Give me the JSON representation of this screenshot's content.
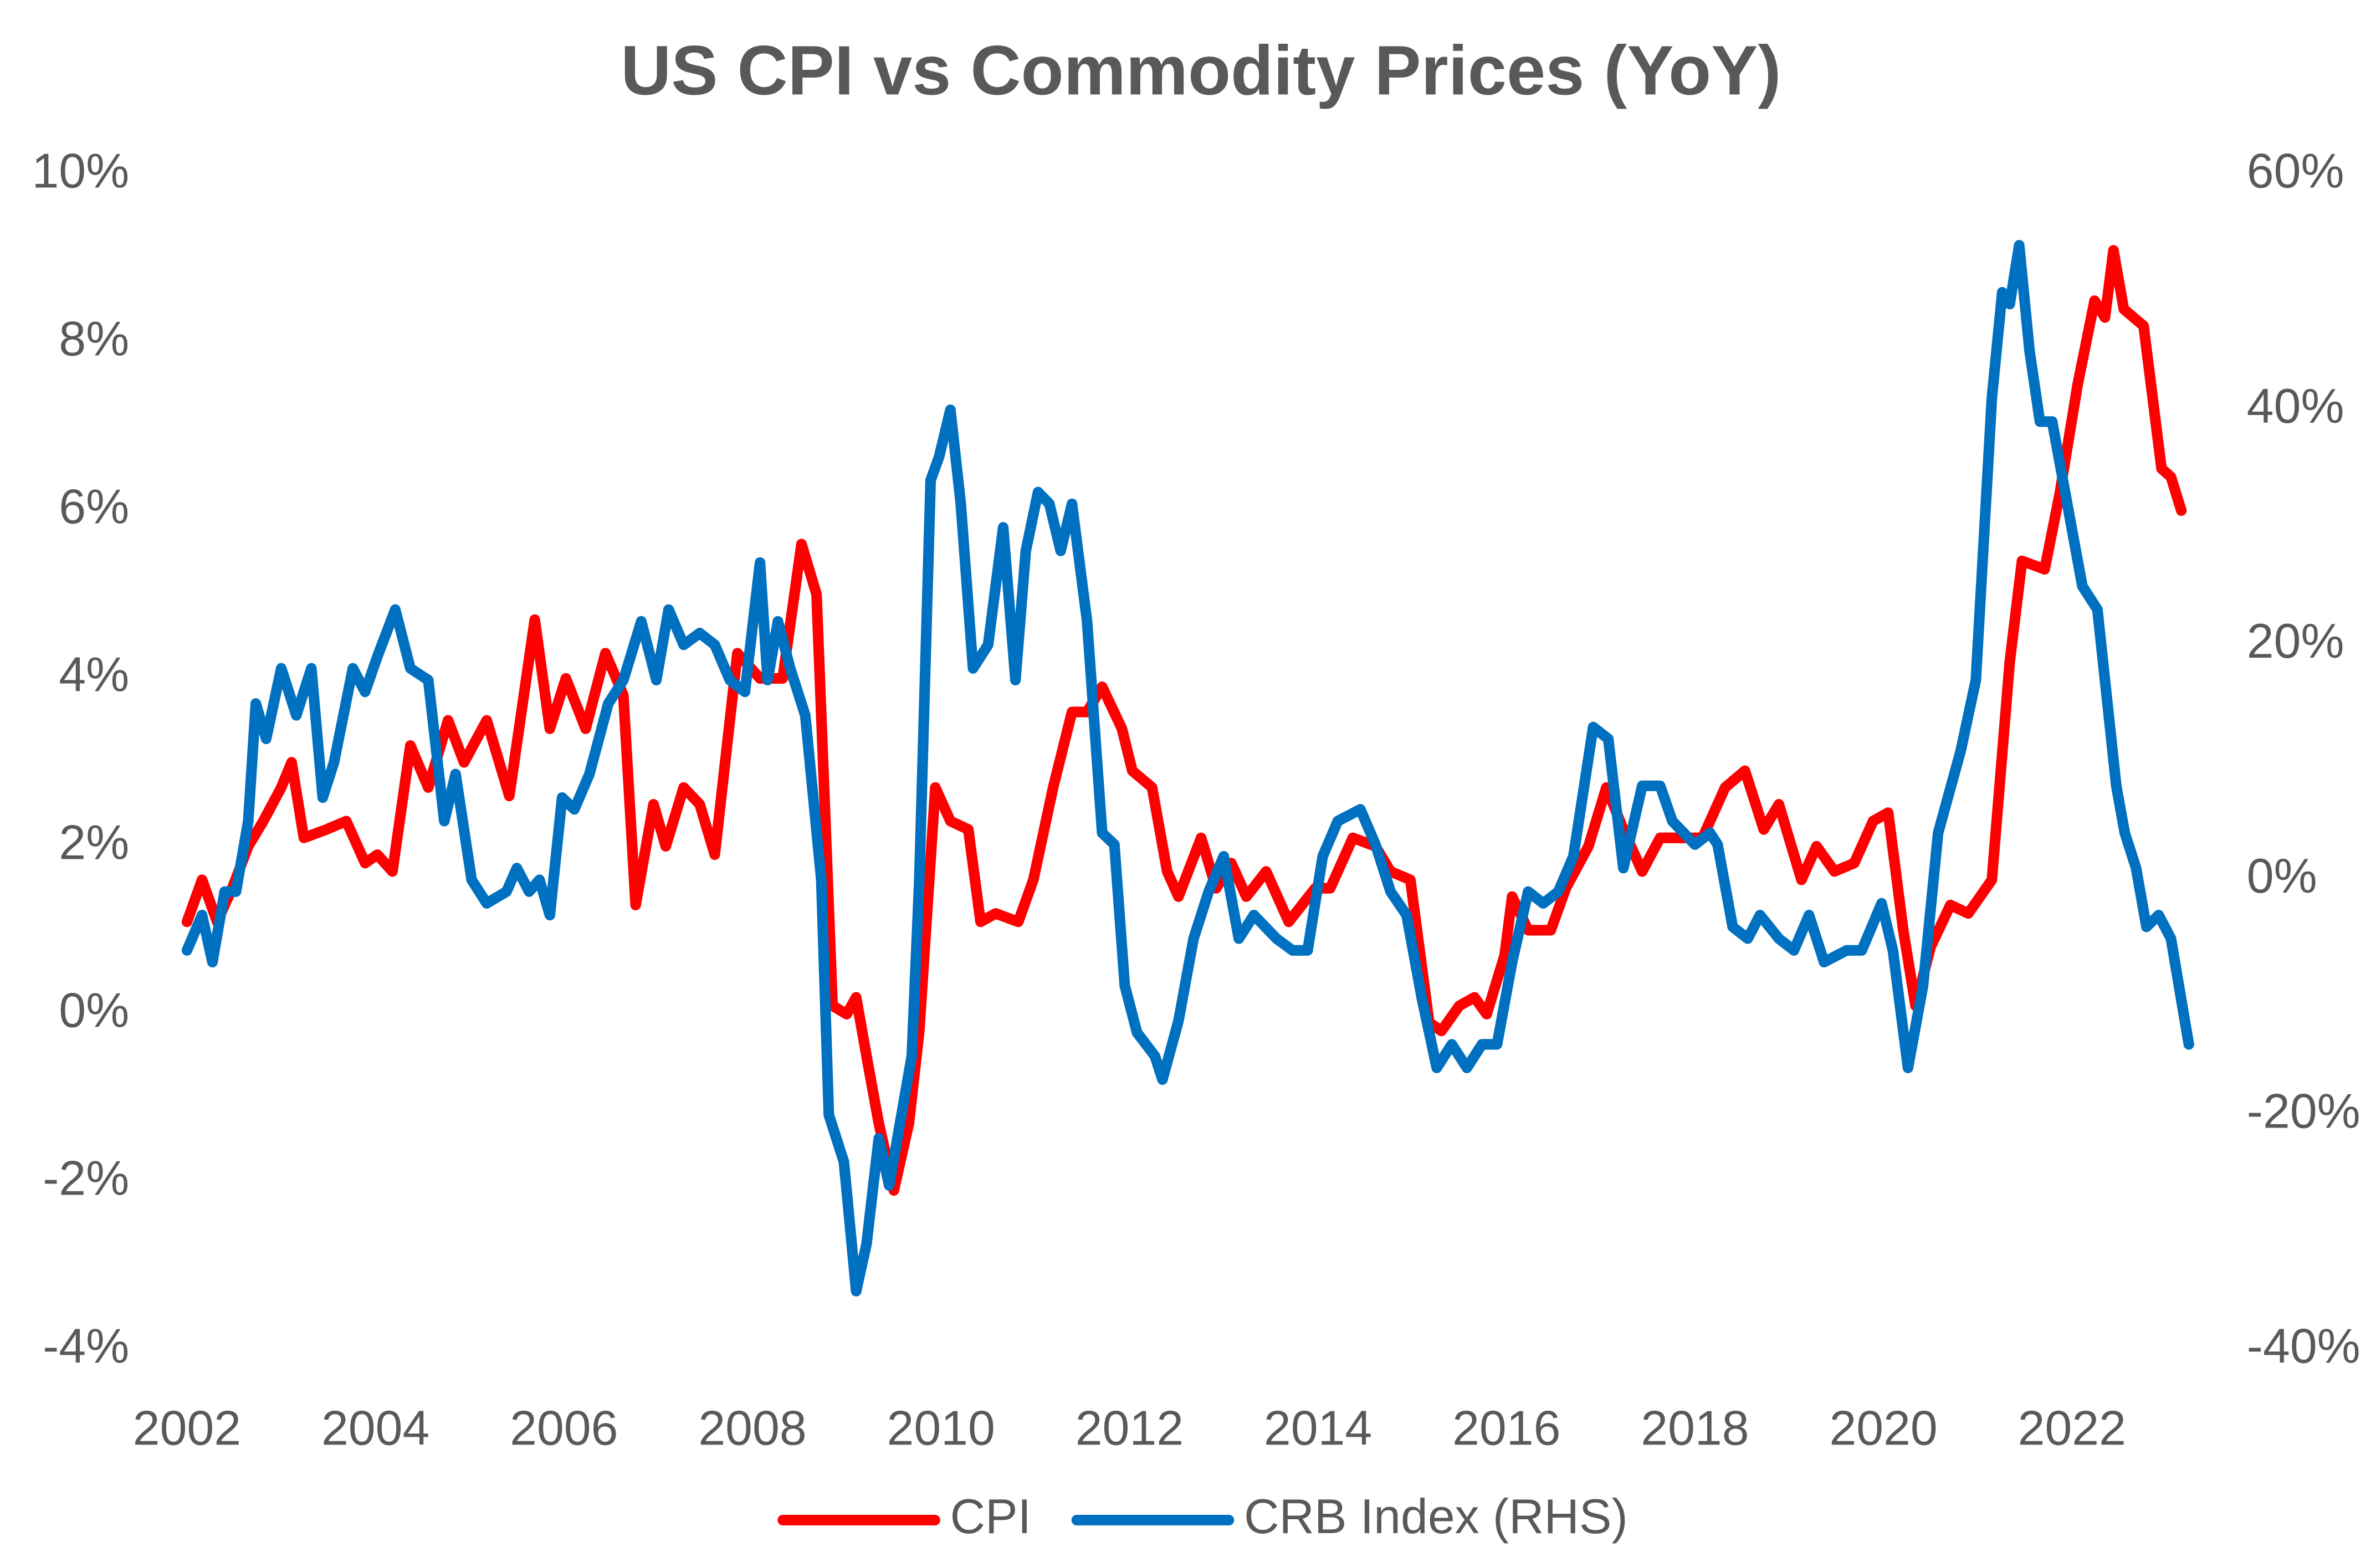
{
  "chart_data": {
    "type": "line",
    "title": "US CPI vs Commodity Prices (YoY)",
    "xlim": [
      2002,
      2023.3
    ],
    "xticks": [
      2002,
      2004,
      2006,
      2008,
      2010,
      2012,
      2014,
      2016,
      2018,
      2020,
      2022
    ],
    "ylim": [
      -4,
      10
    ],
    "yticks": [
      {
        "value": -4,
        "label": "-4%"
      },
      {
        "value": -2,
        "label": "-2%"
      },
      {
        "value": 0,
        "label": "0%"
      },
      {
        "value": 2,
        "label": "2%"
      },
      {
        "value": 4,
        "label": "4%"
      },
      {
        "value": 6,
        "label": "6%"
      },
      {
        "value": 8,
        "label": "8%"
      },
      {
        "value": 10,
        "label": "10%"
      }
    ],
    "y2lim": [
      -40,
      60
    ],
    "y2ticks": [
      {
        "value": -40,
        "label": "-40%"
      },
      {
        "value": -20,
        "label": "-20%"
      },
      {
        "value": 0,
        "label": "0%"
      },
      {
        "value": 20,
        "label": "20%"
      },
      {
        "value": 40,
        "label": "40%"
      },
      {
        "value": 60,
        "label": "60%"
      }
    ],
    "grid": false,
    "legend": "bottom",
    "series": [
      {
        "name": "CPI",
        "color": "#ff0000",
        "x": [
          2002.0,
          2002.16,
          2002.32,
          2002.48,
          2002.65,
          2002.81,
          2003.0,
          2003.11,
          2003.24,
          2003.48,
          2003.69,
          2003.89,
          2004.02,
          2004.18,
          2004.37,
          2004.56,
          2004.77,
          2004.94,
          2005.18,
          2005.42,
          2005.69,
          2005.85,
          2006.02,
          2006.23,
          2006.44,
          2006.63,
          2006.76,
          2006.95,
          2007.08,
          2007.27,
          2007.44,
          2007.6,
          2007.84,
          2008.08,
          2008.32,
          2008.52,
          2008.68,
          2008.85,
          2009.0,
          2009.1,
          2009.21,
          2009.34,
          2009.5,
          2009.66,
          2009.77,
          2009.94,
          2010.1,
          2010.29,
          2010.42,
          2010.58,
          2010.82,
          2010.98,
          2011.19,
          2011.39,
          2011.55,
          2011.71,
          2011.92,
          2012.03,
          2012.24,
          2012.4,
          2012.52,
          2012.76,
          2012.92,
          2013.08,
          2013.24,
          2013.45,
          2013.69,
          2013.97,
          2014.13,
          2014.37,
          2014.61,
          2014.77,
          2014.98,
          2015.18,
          2015.31,
          2015.5,
          2015.66,
          2015.79,
          2015.98,
          2016.06,
          2016.23,
          2016.47,
          2016.63,
          2016.87,
          2017.06,
          2017.24,
          2017.44,
          2017.63,
          2017.84,
          2018.08,
          2018.32,
          2018.53,
          2018.73,
          2018.89,
          2019.13,
          2019.29,
          2019.48,
          2019.69,
          2019.89,
          2020.05,
          2020.21,
          2020.34,
          2020.5,
          2020.71,
          2020.9,
          2021.15,
          2021.34,
          2021.47,
          2021.71,
          2021.87,
          2022.06,
          2022.24,
          2022.35,
          2022.44,
          2022.55,
          2022.76,
          2022.95,
          2023.05,
          2023.16
        ],
        "values": [
          1.1,
          1.6,
          1.1,
          1.5,
          2.0,
          2.3,
          2.7,
          3.0,
          2.1,
          2.2,
          2.3,
          1.8,
          1.9,
          1.7,
          3.2,
          2.7,
          3.5,
          3.0,
          3.5,
          2.6,
          4.7,
          3.4,
          4.0,
          3.4,
          4.3,
          3.8,
          1.3,
          2.5,
          2.0,
          2.7,
          2.5,
          1.9,
          4.3,
          4.0,
          4.0,
          5.6,
          5.0,
          0.1,
          0.0,
          0.2,
          -0.5,
          -1.3,
          -2.1,
          -1.3,
          -0.2,
          2.7,
          2.3,
          2.2,
          1.1,
          1.2,
          1.1,
          1.6,
          2.7,
          3.6,
          3.6,
          3.9,
          3.4,
          2.9,
          2.7,
          1.7,
          1.4,
          2.1,
          1.5,
          1.8,
          1.4,
          1.7,
          1.1,
          1.5,
          1.5,
          2.1,
          2.0,
          1.7,
          1.6,
          -0.1,
          -0.2,
          0.1,
          0.2,
          0.0,
          0.7,
          1.4,
          1.0,
          1.0,
          1.5,
          2.0,
          2.7,
          2.2,
          1.7,
          2.1,
          2.1,
          2.1,
          2.7,
          2.9,
          2.2,
          2.5,
          1.6,
          2.0,
          1.7,
          1.8,
          2.3,
          2.4,
          1.0,
          0.1,
          0.8,
          1.3,
          1.2,
          1.6,
          4.2,
          5.4,
          5.3,
          6.2,
          7.5,
          8.5,
          8.3,
          9.1,
          8.4,
          8.2,
          6.5,
          6.4,
          6.0
        ]
      },
      {
        "name": "CRB Index (RHS)",
        "color": "#0070c0",
        "axis": "y2",
        "x": [
          2002.0,
          2002.16,
          2002.27,
          2002.4,
          2002.52,
          2002.65,
          2002.73,
          2002.84,
          2003.0,
          2003.16,
          2003.32,
          2003.44,
          2003.56,
          2003.76,
          2003.89,
          2004.02,
          2004.21,
          2004.37,
          2004.56,
          2004.73,
          2004.85,
          2005.02,
          2005.18,
          2005.39,
          2005.5,
          2005.63,
          2005.74,
          2005.85,
          2005.98,
          2006.11,
          2006.27,
          2006.47,
          2006.63,
          2006.82,
          2006.98,
          2007.11,
          2007.27,
          2007.44,
          2007.6,
          2007.76,
          2007.92,
          2008.08,
          2008.16,
          2008.27,
          2008.4,
          2008.56,
          2008.73,
          2008.81,
          2008.97,
          2009.1,
          2009.21,
          2009.34,
          2009.45,
          2009.69,
          2009.77,
          2009.89,
          2009.98,
          2010.1,
          2010.21,
          2010.34,
          2010.5,
          2010.66,
          2010.79,
          2010.9,
          2011.03,
          2011.15,
          2011.27,
          2011.39,
          2011.55,
          2011.71,
          2011.84,
          2011.95,
          2012.08,
          2012.27,
          2012.35,
          2012.52,
          2012.68,
          2012.84,
          2013.0,
          2013.16,
          2013.32,
          2013.56,
          2013.73,
          2013.89,
          2014.05,
          2014.21,
          2014.45,
          2014.61,
          2014.77,
          2014.94,
          2015.1,
          2015.26,
          2015.42,
          2015.58,
          2015.74,
          2015.9,
          2016.06,
          2016.23,
          2016.39,
          2016.55,
          2016.71,
          2016.92,
          2017.08,
          2017.24,
          2017.44,
          2017.63,
          2017.76,
          2018.0,
          2018.16,
          2018.24,
          2018.4,
          2018.56,
          2018.69,
          2018.89,
          2019.05,
          2019.21,
          2019.37,
          2019.61,
          2019.77,
          2019.98,
          2020.1,
          2020.26,
          2020.42,
          2020.58,
          2020.82,
          2020.98,
          2021.15,
          2021.26,
          2021.34,
          2021.44,
          2021.55,
          2021.66,
          2021.79,
          2021.95,
          2022.11,
          2022.27,
          2022.47,
          2022.56,
          2022.68,
          2022.79,
          2022.92,
          2023.05,
          2023.24
        ],
        "values": [
          -6,
          -3,
          -7,
          -1,
          -1,
          5,
          15,
          12,
          18,
          14,
          18,
          7,
          10,
          18,
          16,
          19,
          23,
          18,
          17,
          5,
          9,
          0,
          -2,
          -1,
          1,
          -1,
          0,
          -3,
          7,
          6,
          9,
          15,
          17,
          22,
          17,
          23,
          20,
          21,
          20,
          17,
          16,
          27,
          17,
          22,
          18,
          14,
          0,
          -20,
          -24,
          -35,
          -31,
          -22,
          -26,
          -15,
          0,
          34,
          36,
          40,
          32,
          18,
          20,
          30,
          17,
          28,
          33,
          32,
          28,
          32,
          22,
          4,
          3,
          -9,
          -13,
          -15,
          -17,
          -12,
          -5,
          -1,
          2,
          -5,
          -3,
          -5,
          -6,
          -6,
          2,
          5,
          6,
          3,
          -1,
          -3,
          -10,
          -16,
          -14,
          -16,
          -14,
          -14,
          -7,
          -1,
          -2,
          -1,
          2,
          13,
          12,
          1,
          8,
          8,
          5,
          3,
          4,
          3,
          -4,
          -5,
          -3,
          -5,
          -6,
          -3,
          -7,
          -6,
          -6,
          -2,
          -6,
          -16,
          -9,
          4,
          11,
          17,
          41,
          50,
          49,
          54,
          45,
          39,
          39,
          32,
          25,
          23,
          8,
          4,
          1,
          -4,
          -3,
          -5,
          -14
        ]
      }
    ]
  }
}
